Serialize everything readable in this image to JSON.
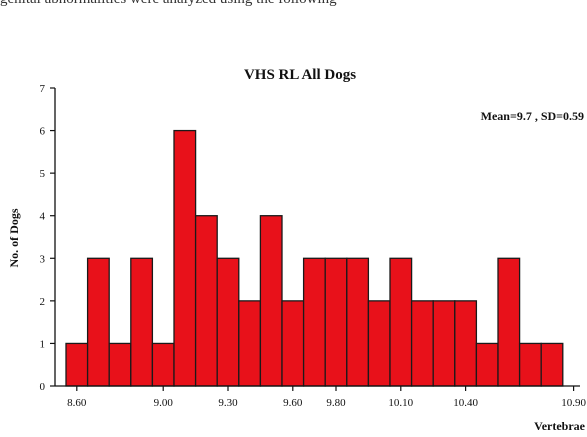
{
  "caption_fragment": "genital abnormalities were analyzed using the following",
  "colors": {
    "bar_fill": "#e8111a",
    "bar_stroke": "#1a1a1a",
    "axis": "#111111"
  },
  "chart_data": {
    "type": "bar",
    "title": "VHS RL All Dogs",
    "annotation": "Mean=9.7 , SD=0.59",
    "xlabel": "Vertebrae",
    "ylabel": "No. of Dogs",
    "ylim": [
      0,
      7
    ],
    "yticks": [
      "0",
      "1",
      "2",
      "3",
      "4",
      "5",
      "6",
      "7"
    ],
    "xticks": [
      "8.60",
      "9.00",
      "9.30",
      "9.60",
      "9.80",
      "10.10",
      "10.40",
      "10.90"
    ],
    "bin_start": 8.55,
    "bin_width": 0.1,
    "values": [
      1,
      3,
      1,
      3,
      1,
      6,
      4,
      3,
      2,
      4,
      2,
      3,
      3,
      3,
      2,
      3,
      2,
      2,
      2,
      1,
      3,
      1,
      1
    ],
    "grid": false,
    "legend": "none"
  }
}
